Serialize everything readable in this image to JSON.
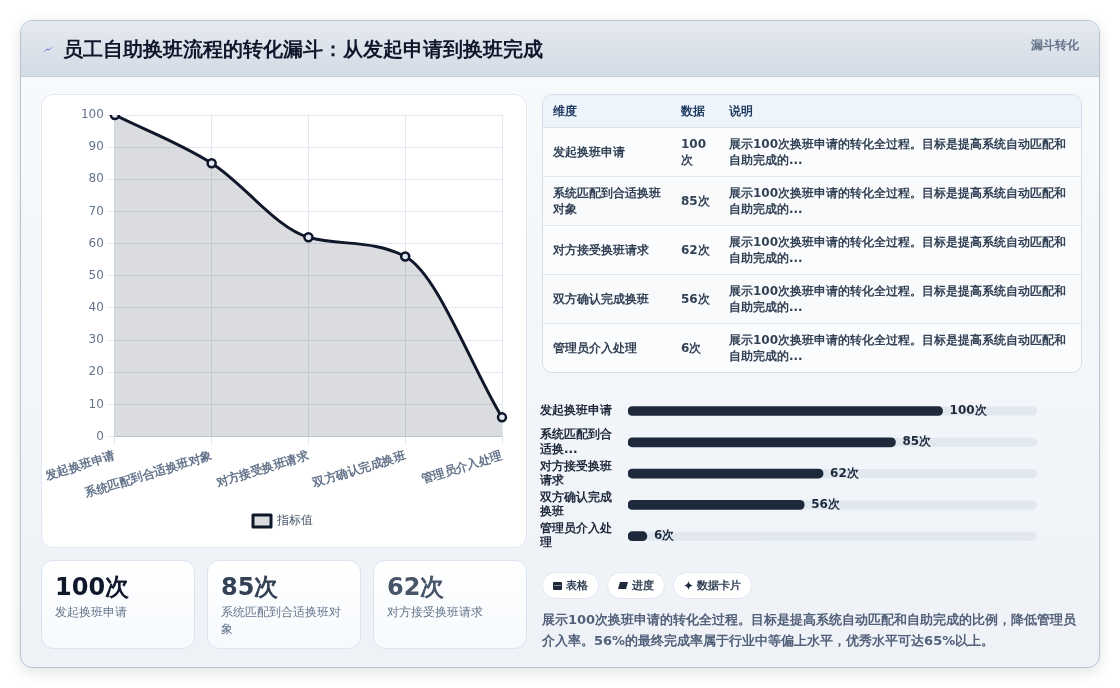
{
  "chart_data": [
    {
      "type": "area",
      "title": "员工自助换班流程的转化漏斗：从发起申请到换班完成",
      "annotations": [
        "漏斗转化"
      ],
      "categories": [
        "发起换班申请",
        "系统匹配到合适换班对象",
        "对方接受换班请求",
        "双方确认完成换班",
        "管理员介入处理"
      ],
      "series": [
        {
          "name": "指标值",
          "color": "#0f172a",
          "values": [
            100,
            85,
            62,
            56,
            6
          ]
        }
      ],
      "ylim": [
        0,
        100
      ],
      "yticks": [
        0,
        10,
        20,
        30,
        40,
        50,
        60,
        70,
        80,
        90,
        100
      ],
      "grid": true,
      "legend": "bottom",
      "marker": "circle"
    },
    {
      "type": "other",
      "categories": [
        "发起换班申请",
        "系统匹配到合适换班对象",
        "对方接受换班请求",
        "双方确认完成换班",
        "管理员介入处理"
      ],
      "value_labels": [
        "100次",
        "85次",
        "62次",
        "56次",
        "6次"
      ],
      "annotations": [
        "维度",
        "数据",
        "说明",
        "展示100次换班申请的转化全过程。目标是提高系统自动匹配和自助完成的...",
        "展示100次换班申请的转化全过程。目标是提高系统自动匹配和自助完成的...",
        "展示100次换班申请的转化全过程。目标是提高系统自动匹配和自助完成的...",
        "展示100次换班申请的转化全过程。目标是提高系统自动匹配和自助完成的...",
        "展示100次换班申请的转化全过程。目标是提高系统自动匹配和自助完成的..."
      ]
    },
    {
      "type": "bar",
      "orientation": "horizontal",
      "categories": [
        "发起换班申请",
        "系统匹配到合适换...",
        "对方接受换班请求",
        "双方确认完成换班",
        "管理员介入处理"
      ],
      "values": [
        100,
        85,
        62,
        56,
        6
      ],
      "value_labels": [
        "100次",
        "85次",
        "62次",
        "56次",
        "6次"
      ],
      "color": "#1e293b",
      "xlim": [
        0,
        130
      ],
      "tick_labels": "y"
    },
    {
      "type": "other",
      "annotations": [
        "100次",
        "发起换班申请",
        "85次",
        "系统匹配到合适换班对象",
        "62次",
        "对方接受换班请求"
      ],
      "colors": [
        "#0f172a",
        "#334155",
        "#475569"
      ]
    },
    {
      "type": "other",
      "annotations": [
        "表格",
        "进度",
        "数据卡片",
        "展示100次换班申请的转化全过程。目标是提高系统自动匹配和自助完成的比例，降低管理员介入率。56%的最终完成率属于行业中等偏上水平，优秀水平可达65%以上。"
      ]
    }
  ]
}
